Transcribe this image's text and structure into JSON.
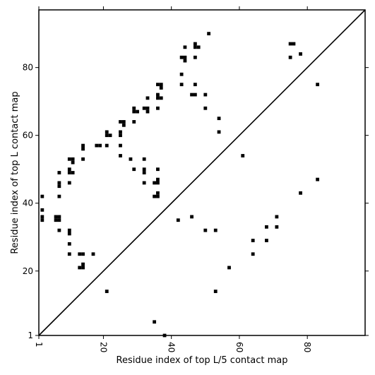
{
  "chart_data": {
    "type": "scatter",
    "xlabel": "Residue index of top L/5 contact map",
    "ylabel": "Residue index of top L contact map",
    "xlim": [
      1,
      97
    ],
    "ylim": [
      1,
      97
    ],
    "xticks": [
      1,
      20,
      40,
      60,
      80
    ],
    "yticks": [
      1,
      20,
      40,
      60,
      80
    ],
    "diagonal": true,
    "marker_color": "#000000",
    "points": [
      [
        2,
        42
      ],
      [
        2,
        38
      ],
      [
        2,
        36
      ],
      [
        2,
        35
      ],
      [
        6,
        36
      ],
      [
        6,
        35
      ],
      [
        7,
        36
      ],
      [
        7,
        35
      ],
      [
        7,
        32
      ],
      [
        7,
        42
      ],
      [
        7,
        46
      ],
      [
        7,
        45
      ],
      [
        7,
        49
      ],
      [
        10,
        53
      ],
      [
        10,
        50
      ],
      [
        10,
        49
      ],
      [
        11,
        53
      ],
      [
        11,
        52
      ],
      [
        11,
        49
      ],
      [
        10,
        46
      ],
      [
        10,
        32
      ],
      [
        10,
        31
      ],
      [
        10,
        28
      ],
      [
        10,
        25
      ],
      [
        13,
        25
      ],
      [
        14,
        25
      ],
      [
        13,
        21
      ],
      [
        14,
        21
      ],
      [
        14,
        22
      ],
      [
        14,
        53
      ],
      [
        14,
        56
      ],
      [
        14,
        57
      ],
      [
        17,
        25
      ],
      [
        18,
        57
      ],
      [
        19,
        57
      ],
      [
        21,
        61
      ],
      [
        21,
        60
      ],
      [
        22,
        60
      ],
      [
        21,
        57
      ],
      [
        21,
        14
      ],
      [
        25,
        64
      ],
      [
        26,
        64
      ],
      [
        26,
        63
      ],
      [
        25,
        61
      ],
      [
        25,
        60
      ],
      [
        25,
        57
      ],
      [
        25,
        54
      ],
      [
        28,
        53
      ],
      [
        29,
        50
      ],
      [
        29,
        64
      ],
      [
        29,
        68
      ],
      [
        30,
        67
      ],
      [
        29,
        67
      ],
      [
        32,
        68
      ],
      [
        33,
        68
      ],
      [
        33,
        67
      ],
      [
        33,
        71
      ],
      [
        32,
        53
      ],
      [
        32,
        50
      ],
      [
        32,
        49
      ],
      [
        32,
        46
      ],
      [
        35,
        46
      ],
      [
        36,
        46
      ],
      [
        36,
        47
      ],
      [
        36,
        50
      ],
      [
        35,
        42
      ],
      [
        36,
        42
      ],
      [
        36,
        43
      ],
      [
        35,
        5
      ],
      [
        36,
        68
      ],
      [
        36,
        71
      ],
      [
        36,
        72
      ],
      [
        37,
        71
      ],
      [
        36,
        75
      ],
      [
        37,
        75
      ],
      [
        37,
        74
      ],
      [
        38,
        1
      ],
      [
        42,
        35
      ],
      [
        43,
        83
      ],
      [
        43,
        78
      ],
      [
        43,
        75
      ],
      [
        44,
        83
      ],
      [
        44,
        82
      ],
      [
        44,
        86
      ],
      [
        46,
        72
      ],
      [
        47,
        72
      ],
      [
        46,
        36
      ],
      [
        47,
        87
      ],
      [
        47,
        86
      ],
      [
        48,
        86
      ],
      [
        47,
        83
      ],
      [
        47,
        75
      ],
      [
        50,
        72
      ],
      [
        50,
        68
      ],
      [
        50,
        32
      ],
      [
        51,
        90
      ],
      [
        53,
        32
      ],
      [
        53,
        14
      ],
      [
        54,
        65
      ],
      [
        54,
        61
      ],
      [
        57,
        21
      ],
      [
        61,
        54
      ],
      [
        64,
        29
      ],
      [
        64,
        25
      ],
      [
        68,
        33
      ],
      [
        68,
        29
      ],
      [
        71,
        36
      ],
      [
        71,
        33
      ],
      [
        75,
        87
      ],
      [
        76,
        87
      ],
      [
        75,
        83
      ],
      [
        78,
        84
      ],
      [
        78,
        43
      ],
      [
        83,
        75
      ],
      [
        83,
        47
      ]
    ]
  }
}
